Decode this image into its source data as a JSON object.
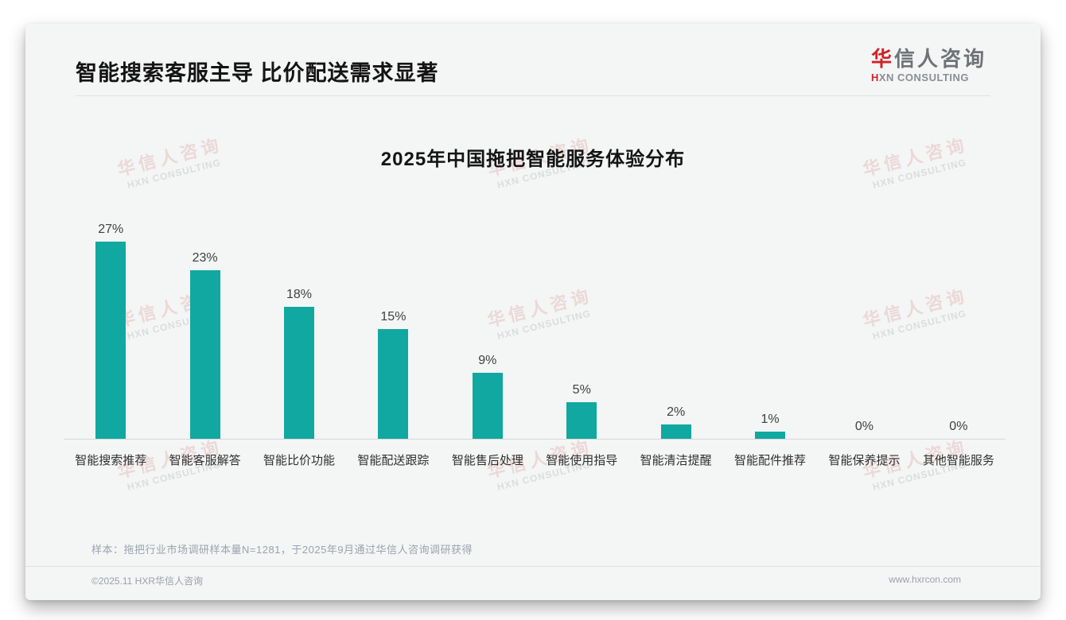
{
  "page": {
    "header": {
      "title": "智能搜索客服主导 比价配送需求显著"
    },
    "logo": {
      "cn_first": "华",
      "cn_rest": "信人咨询",
      "en_first": "H",
      "en_rest": "XN CONSULTING"
    },
    "watermark": {
      "line1": "华信人咨询",
      "line2": "HXN CONSULTING"
    },
    "note": "样本：拖把行业市场调研样本量N=1281，于2025年9月通过华信人咨询调研获得",
    "footer": {
      "copyright": "©2025.11 HXR华信人咨询",
      "website": "www.hxrcon.com"
    },
    "colors": {
      "bar": "#10a8a1",
      "accent_red": "#ce2328"
    }
  },
  "chart_data": {
    "type": "bar",
    "title": "2025年中国拖把智能服务体验分布",
    "categories": [
      "智能搜索推荐",
      "智能客服解答",
      "智能比价功能",
      "智能配送跟踪",
      "智能售后处理",
      "智能使用指导",
      "智能清洁提醒",
      "智能配件推荐",
      "智能保养提示",
      "其他智能服务"
    ],
    "values": [
      27,
      23,
      18,
      15,
      9,
      5,
      2,
      1,
      0,
      0
    ],
    "unit": "%",
    "xlabel": "",
    "ylabel": "",
    "ylim": [
      0,
      30
    ],
    "grid": false,
    "legend": false,
    "bar_color": "#10a8a1",
    "value_label_format": "{v}%"
  }
}
